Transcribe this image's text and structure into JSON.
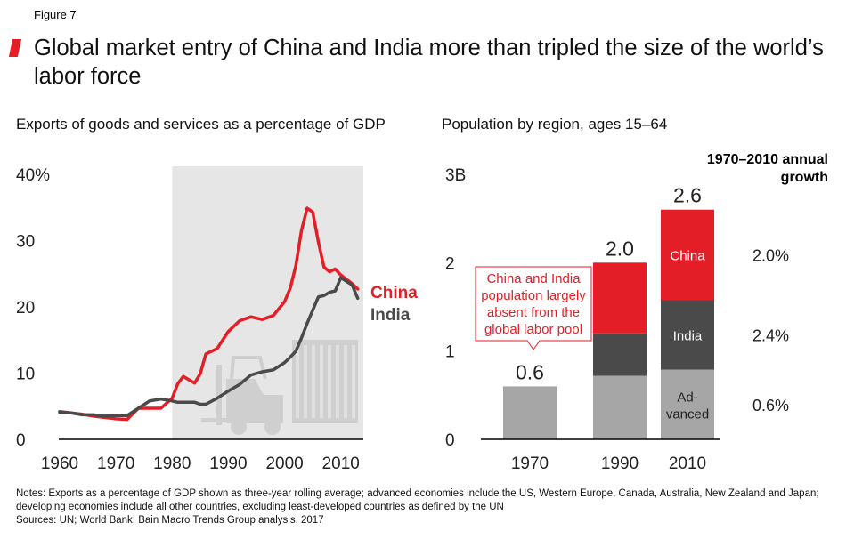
{
  "figure_label": "Figure 7",
  "title": "Global market entry of China and India more than tripled the size of the world’s labor force",
  "colors": {
    "china": "#e41e26",
    "india": "#4a4a4a",
    "advanced": "#a6a6a6",
    "shade": "#e6e6e6",
    "accent": "#e41e26"
  },
  "chart_data": [
    {
      "type": "line",
      "title": "Exports of goods and services as a percentage of GDP",
      "y_tick_labels": [
        "40%",
        "30",
        "20",
        "10",
        "0"
      ],
      "y_tick_values": [
        40,
        30,
        20,
        10,
        0
      ],
      "ylim": [
        0,
        40
      ],
      "x_tick_labels": [
        "1960",
        "1970",
        "1980",
        "1990",
        "2000",
        "2010"
      ],
      "x_tick_values": [
        1960,
        1970,
        1980,
        1990,
        2000,
        2010
      ],
      "xlim": [
        1960,
        2014
      ],
      "shaded_period": [
        1980,
        2014
      ],
      "x": [
        1960,
        1962,
        1964,
        1966,
        1968,
        1970,
        1972,
        1974,
        1976,
        1978,
        1980,
        1981,
        1982,
        1984,
        1985,
        1986,
        1988,
        1990,
        1992,
        1994,
        1996,
        1998,
        2000,
        2001,
        2002,
        2003,
        2004,
        2005,
        2006,
        2007,
        2008,
        2009,
        2010,
        2012,
        2013
      ],
      "series": [
        {
          "name": "China",
          "label": "China",
          "values": [
            4.2,
            4.0,
            3.8,
            3.5,
            3.3,
            3.1,
            3.0,
            4.7,
            4.7,
            4.7,
            6.2,
            8.4,
            9.5,
            8.5,
            9.9,
            12.9,
            13.7,
            16.3,
            17.9,
            18.5,
            18.1,
            18.7,
            20.8,
            22.8,
            26.2,
            31.5,
            34.9,
            34.3,
            29.8,
            26.0,
            25.3,
            25.7,
            24.8,
            23.5,
            22.7
          ]
        },
        {
          "name": "India",
          "label": "India",
          "values": [
            4.1,
            4.0,
            3.7,
            3.7,
            3.5,
            3.6,
            3.6,
            4.7,
            5.8,
            6.1,
            5.8,
            5.6,
            5.6,
            5.6,
            5.3,
            5.3,
            6.2,
            7.3,
            8.3,
            9.7,
            10.2,
            10.5,
            11.6,
            12.4,
            13.3,
            15.3,
            17.5,
            19.5,
            21.5,
            21.7,
            22.2,
            22.4,
            24.4,
            23.3,
            21.3
          ]
        }
      ]
    },
    {
      "type": "bar",
      "stacked": true,
      "title": "Population by region, ages 15–64",
      "y_tick_labels": [
        "3B",
        "2",
        "1",
        "0"
      ],
      "y_tick_values": [
        3,
        2,
        1,
        0
      ],
      "ylim": [
        0,
        3
      ],
      "categories": [
        "1970",
        "1990",
        "2010"
      ],
      "totals": [
        0.6,
        2.0,
        2.6
      ],
      "total_labels": [
        "0.6",
        "2.0",
        "2.6"
      ],
      "series": [
        {
          "name": "Advanced",
          "label": "Ad-\nvanced",
          "values": [
            0.6,
            0.72,
            0.79
          ]
        },
        {
          "name": "India",
          "label": "India",
          "values": [
            0,
            0.48,
            0.79
          ]
        },
        {
          "name": "China",
          "label": "China",
          "values": [
            0,
            0.8,
            1.02
          ]
        }
      ],
      "annotation": "China and India population largely absent from the global labor pool",
      "growth_header": "1970–2010 annual growth",
      "growth_rates": [
        {
          "series": "China",
          "rate": "2.0%"
        },
        {
          "series": "India",
          "rate": "2.4%"
        },
        {
          "series": "Advanced",
          "rate": "0.6%"
        }
      ]
    }
  ],
  "notes": [
    "Notes: Exports as a percentage of GDP shown as three-year rolling average; advanced economies include the US, Western Europe, Canada, Australia, New Zealand and Japan; developing economies include all other countries, excluding least-developed countries as defined by the UN",
    "Sources: UN; World Bank; Bain Macro Trends Group analysis, 2017"
  ]
}
